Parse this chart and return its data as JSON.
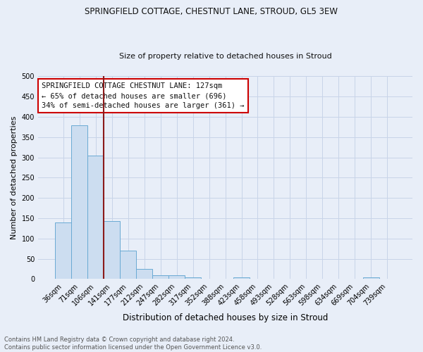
{
  "title": "SPRINGFIELD COTTAGE, CHESTNUT LANE, STROUD, GL5 3EW",
  "subtitle": "Size of property relative to detached houses in Stroud",
  "xlabel": "Distribution of detached houses by size in Stroud",
  "ylabel": "Number of detached properties",
  "categories": [
    "36sqm",
    "71sqm",
    "106sqm",
    "141sqm",
    "177sqm",
    "212sqm",
    "247sqm",
    "282sqm",
    "317sqm",
    "352sqm",
    "388sqm",
    "423sqm",
    "458sqm",
    "493sqm",
    "528sqm",
    "563sqm",
    "598sqm",
    "634sqm",
    "669sqm",
    "704sqm",
    "739sqm"
  ],
  "values": [
    140,
    380,
    305,
    143,
    70,
    25,
    10,
    9,
    5,
    0,
    0,
    5,
    0,
    0,
    0,
    0,
    0,
    0,
    0,
    5,
    0
  ],
  "bar_color": "#ccddf0",
  "bar_edge_color": "#6aaad4",
  "grid_color": "#c8d4e8",
  "background_color": "#e8eef8",
  "vline_color": "#8b1a1a",
  "vline_x": 2.5,
  "annotation_title": "SPRINGFIELD COTTAGE CHESTNUT LANE: 127sqm",
  "annotation_line1": "← 65% of detached houses are smaller (696)",
  "annotation_line2": "34% of semi-detached houses are larger (361) →",
  "annotation_box_color": "#ffffff",
  "annotation_box_edge": "#cc0000",
  "footer_line1": "Contains HM Land Registry data © Crown copyright and database right 2024.",
  "footer_line2": "Contains public sector information licensed under the Open Government Licence v3.0.",
  "ylim": [
    0,
    500
  ],
  "yticks": [
    0,
    50,
    100,
    150,
    200,
    250,
    300,
    350,
    400,
    450,
    500
  ],
  "title_fontsize": 8.5,
  "subtitle_fontsize": 8.0,
  "ylabel_fontsize": 8.0,
  "xlabel_fontsize": 8.5,
  "tick_fontsize": 7.0,
  "annot_fontsize": 7.5,
  "footer_fontsize": 6.0
}
